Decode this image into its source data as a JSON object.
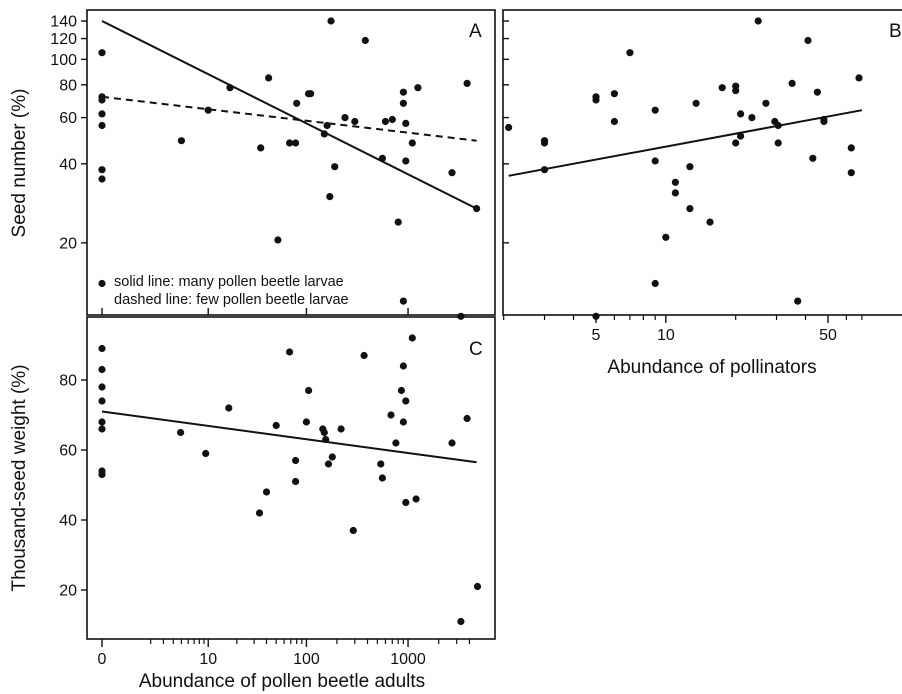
{
  "chart_data": [
    {
      "panel": "A",
      "type": "scatter",
      "xlabel": "",
      "ylabel": "Seed number (%)",
      "x_scale": "log(x+1)",
      "y_scale": "log",
      "xlim": [
        0,
        5000
      ],
      "ylim": [
        10,
        145
      ],
      "y_ticks": [
        20,
        40,
        60,
        80,
        100,
        120,
        140
      ],
      "x_ticks": [
        0,
        10,
        100,
        1000
      ],
      "annotations": [
        "solid line: many pollen beetle larvae",
        "dashed line: few pollen beetle larvae"
      ],
      "points": [
        [
          0,
          106
        ],
        [
          0,
          72
        ],
        [
          0,
          70
        ],
        [
          0,
          62
        ],
        [
          0,
          56
        ],
        [
          0,
          38
        ],
        [
          0,
          35
        ],
        [
          0,
          14
        ],
        [
          5,
          49
        ],
        [
          10,
          64
        ],
        [
          17,
          78
        ],
        [
          35,
          46
        ],
        [
          42,
          85
        ],
        [
          52,
          20.5
        ],
        [
          68,
          48
        ],
        [
          78,
          48
        ],
        [
          80,
          68
        ],
        [
          105,
          74
        ],
        [
          110,
          74
        ],
        [
          150,
          52
        ],
        [
          160,
          56
        ],
        [
          170,
          30
        ],
        [
          175,
          140
        ],
        [
          190,
          39
        ],
        [
          240,
          60
        ],
        [
          300,
          58
        ],
        [
          380,
          118
        ],
        [
          560,
          42
        ],
        [
          600,
          58
        ],
        [
          700,
          59
        ],
        [
          800,
          24
        ],
        [
          900,
          68
        ],
        [
          900,
          75
        ],
        [
          950,
          41
        ],
        [
          950,
          57
        ],
        [
          900,
          12
        ],
        [
          1100,
          48
        ],
        [
          1250,
          78
        ],
        [
          2700,
          37
        ],
        [
          3300,
          10.5
        ],
        [
          3800,
          81
        ],
        [
          4700,
          27
        ]
      ],
      "series": [
        {
          "name": "solid line: many pollen beetle larvae",
          "style": "solid",
          "x": [
            0,
            4700
          ],
          "y": [
            140,
            27
          ]
        },
        {
          "name": "dashed line: few pollen beetle larvae",
          "style": "dashed",
          "x": [
            0,
            4700
          ],
          "y": [
            72,
            49
          ]
        }
      ]
    },
    {
      "panel": "B",
      "type": "scatter",
      "xlabel": "Abundance of pollinators",
      "ylabel": "",
      "x_scale": "log",
      "y_scale": "log",
      "xlim": [
        2,
        70
      ],
      "ylim": [
        10,
        145
      ],
      "x_ticks": [
        5,
        10,
        50
      ],
      "points": [
        [
          2.1,
          55
        ],
        [
          3.0,
          48
        ],
        [
          3.0,
          49
        ],
        [
          3.0,
          38
        ],
        [
          5.0,
          70
        ],
        [
          5.0,
          72
        ],
        [
          5.0,
          10.5
        ],
        [
          6.0,
          58
        ],
        [
          6.0,
          74
        ],
        [
          7.0,
          106
        ],
        [
          9.0,
          64
        ],
        [
          9.0,
          41
        ],
        [
          9.0,
          14
        ],
        [
          10,
          21
        ],
        [
          11,
          34
        ],
        [
          11,
          31
        ],
        [
          12.7,
          39
        ],
        [
          12.7,
          27
        ],
        [
          13.5,
          68
        ],
        [
          15.5,
          24
        ],
        [
          17.5,
          78
        ],
        [
          20,
          76
        ],
        [
          20,
          79
        ],
        [
          20,
          48
        ],
        [
          21,
          62
        ],
        [
          21,
          51
        ],
        [
          23.5,
          60
        ],
        [
          25,
          140
        ],
        [
          27,
          68
        ],
        [
          29.5,
          58
        ],
        [
          30.5,
          56
        ],
        [
          30.5,
          48
        ],
        [
          35,
          81
        ],
        [
          37,
          12
        ],
        [
          41,
          118
        ],
        [
          43,
          42
        ],
        [
          45,
          75
        ],
        [
          48,
          58
        ],
        [
          48,
          59
        ],
        [
          63,
          46
        ],
        [
          63,
          37
        ],
        [
          68,
          85
        ]
      ],
      "series": [
        {
          "style": "solid",
          "x": [
            2.1,
            70
          ],
          "y": [
            36,
            64
          ]
        }
      ]
    },
    {
      "panel": "C",
      "type": "scatter",
      "xlabel": "Abundance of pollen beetle adults",
      "ylabel": "Thousand-seed weight (%)",
      "x_scale": "log(x+1)",
      "y_scale": "linear",
      "xlim": [
        0,
        5000
      ],
      "ylim": [
        10,
        92
      ],
      "y_ticks": [
        20,
        40,
        60,
        80
      ],
      "x_ticks": [
        0,
        10,
        100,
        1000
      ],
      "points": [
        [
          0,
          89
        ],
        [
          0,
          83
        ],
        [
          0,
          78
        ],
        [
          0,
          74
        ],
        [
          0,
          68
        ],
        [
          0,
          66
        ],
        [
          0,
          54
        ],
        [
          0,
          53
        ],
        [
          4.9,
          65
        ],
        [
          9.4,
          59
        ],
        [
          16.5,
          72
        ],
        [
          34,
          42
        ],
        [
          40,
          48
        ],
        [
          50,
          67
        ],
        [
          68,
          88
        ],
        [
          78,
          51
        ],
        [
          78,
          57
        ],
        [
          100,
          68
        ],
        [
          105,
          77
        ],
        [
          145,
          66
        ],
        [
          150,
          65
        ],
        [
          155,
          63
        ],
        [
          165,
          56
        ],
        [
          180,
          58
        ],
        [
          220,
          66
        ],
        [
          290,
          37
        ],
        [
          370,
          87
        ],
        [
          540,
          56
        ],
        [
          560,
          52
        ],
        [
          680,
          70
        ],
        [
          760,
          62
        ],
        [
          860,
          77
        ],
        [
          900,
          68
        ],
        [
          900,
          84
        ],
        [
          950,
          74
        ],
        [
          950,
          45
        ],
        [
          1100,
          92
        ],
        [
          1200,
          46
        ],
        [
          2700,
          62
        ],
        [
          3300,
          11
        ],
        [
          3800,
          69
        ],
        [
          4800,
          21
        ]
      ],
      "series": [
        {
          "style": "solid",
          "x": [
            0,
            4700
          ],
          "y": [
            71,
            56.5
          ]
        }
      ]
    }
  ]
}
